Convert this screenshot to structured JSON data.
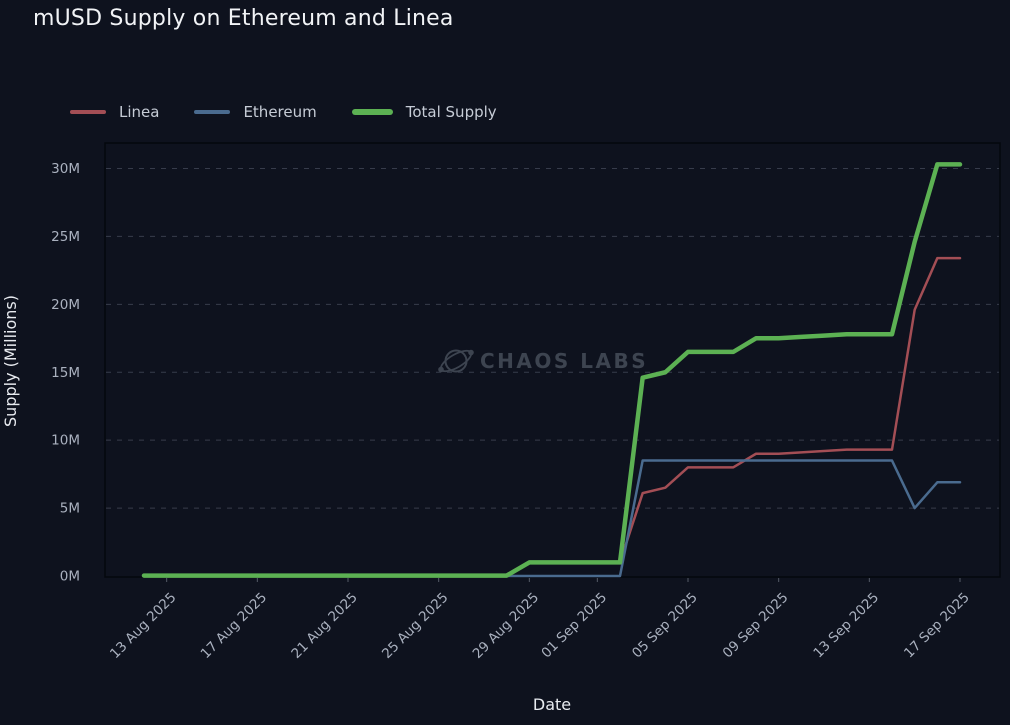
{
  "title": "mUSD Supply on Ethereum and Linea",
  "watermark_text": "CHAOS LABS",
  "theme": {
    "background": "#0e121e",
    "plot_border": "#04070d",
    "grid_line": "#596070",
    "tick_label": "#aab1bf",
    "axis_title": "#e8ebf0",
    "title_color": "#f1f3f6",
    "legend_text": "#c6ccd6",
    "watermark": "#3d4450"
  },
  "chart_data": {
    "type": "line",
    "title": "mUSD Supply on Ethereum and Linea",
    "xlabel": "Date",
    "ylabel": "Supply (Millions)",
    "ylim": [
      0,
      32
    ],
    "xlim": [
      "10 Aug 2025",
      "19 Sep 2025"
    ],
    "grid": "horizontal-dashed",
    "legend_position": "top-left",
    "y_ticks": [
      {
        "value": 0,
        "label": "0M"
      },
      {
        "value": 5,
        "label": "5M"
      },
      {
        "value": 10,
        "label": "10M"
      },
      {
        "value": 15,
        "label": "15M"
      },
      {
        "value": 20,
        "label": "20M"
      },
      {
        "value": 25,
        "label": "25M"
      },
      {
        "value": 30,
        "label": "30M"
      }
    ],
    "x": [
      "12 Aug 2025",
      "13 Aug 2025",
      "14 Aug 2025",
      "15 Aug 2025",
      "16 Aug 2025",
      "17 Aug 2025",
      "18 Aug 2025",
      "19 Aug 2025",
      "20 Aug 2025",
      "21 Aug 2025",
      "22 Aug 2025",
      "23 Aug 2025",
      "24 Aug 2025",
      "25 Aug 2025",
      "26 Aug 2025",
      "27 Aug 2025",
      "28 Aug 2025",
      "29 Aug 2025",
      "30 Aug 2025",
      "31 Aug 2025",
      "01 Sep 2025",
      "02 Sep 2025",
      "03 Sep 2025",
      "04 Sep 2025",
      "05 Sep 2025",
      "06 Sep 2025",
      "07 Sep 2025",
      "08 Sep 2025",
      "09 Sep 2025",
      "10 Sep 2025",
      "11 Sep 2025",
      "12 Sep 2025",
      "13 Sep 2025",
      "14 Sep 2025",
      "15 Sep 2025",
      "16 Sep 2025",
      "17 Sep 2025"
    ],
    "x_ticks": [
      {
        "index": 1,
        "label": "13 Aug 2025"
      },
      {
        "index": 5,
        "label": "17 Aug 2025"
      },
      {
        "index": 9,
        "label": "21 Aug 2025"
      },
      {
        "index": 13,
        "label": "25 Aug 2025"
      },
      {
        "index": 17,
        "label": "29 Aug 2025"
      },
      {
        "index": 20,
        "label": "01 Sep 2025"
      },
      {
        "index": 24,
        "label": "05 Sep 2025"
      },
      {
        "index": 28,
        "label": "09 Sep 2025"
      },
      {
        "index": 32,
        "label": "13 Sep 2025"
      },
      {
        "index": 36,
        "label": "17 Sep 2025"
      }
    ],
    "series": [
      {
        "name": "Linea",
        "color": "#a34e55",
        "line_width": 2.5,
        "values": [
          0.03,
          0.03,
          0.03,
          0.03,
          0.03,
          0.03,
          0.03,
          0.03,
          0.03,
          0.03,
          0.03,
          0.03,
          0.03,
          0.03,
          0.03,
          0.03,
          0.03,
          1.0,
          1.0,
          1.0,
          1.0,
          1.0,
          6.1,
          6.5,
          8.0,
          8.0,
          8.0,
          9.0,
          9.0,
          9.1,
          9.2,
          9.3,
          9.3,
          9.3,
          19.6,
          23.4,
          23.4
        ]
      },
      {
        "name": "Ethereum",
        "color": "#4a6b8f",
        "line_width": 2.5,
        "values": [
          0,
          0,
          0,
          0,
          0,
          0,
          0,
          0,
          0,
          0,
          0,
          0,
          0,
          0,
          0,
          0,
          0,
          0,
          0,
          0,
          0,
          0,
          8.5,
          8.5,
          8.5,
          8.5,
          8.5,
          8.5,
          8.5,
          8.5,
          8.5,
          8.5,
          8.5,
          8.5,
          5.0,
          6.9,
          6.9
        ]
      },
      {
        "name": "Total Supply",
        "color": "#5cb153",
        "line_width": 4.5,
        "values": [
          0.03,
          0.03,
          0.03,
          0.03,
          0.03,
          0.03,
          0.03,
          0.03,
          0.03,
          0.03,
          0.03,
          0.03,
          0.03,
          0.03,
          0.03,
          0.03,
          0.03,
          1.0,
          1.0,
          1.0,
          1.0,
          1.0,
          14.6,
          15.0,
          16.5,
          16.5,
          16.5,
          17.5,
          17.5,
          17.6,
          17.7,
          17.8,
          17.8,
          17.8,
          24.6,
          30.3,
          30.3
        ]
      }
    ]
  }
}
